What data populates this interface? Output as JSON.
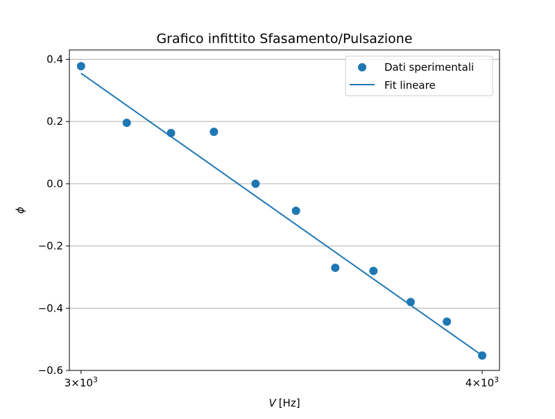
{
  "chart_data": {
    "type": "scatter",
    "title": "Grafico infittito Sfasamento/Pulsazione",
    "xlabel_var": "V",
    "xlabel_unit": "[Hz]",
    "ylabel": "ϕ",
    "x_scale": "log",
    "xlim": [
      2975,
      4050
    ],
    "ylim": [
      -0.6,
      0.43
    ],
    "yticks": [
      0.4,
      0.2,
      0.0,
      -0.2,
      -0.4,
      -0.6
    ],
    "ytick_labels": [
      "0.4",
      "0.2",
      "0.0",
      "−0.2",
      "−0.4",
      "−0.6"
    ],
    "xticks": [
      {
        "value": 3000,
        "mantissa": "3",
        "base": "10",
        "exp": "3"
      },
      {
        "value": 4000,
        "mantissa": "4",
        "base": "10",
        "exp": "3"
      }
    ],
    "grid": "y",
    "legend_position": "top-right",
    "series": [
      {
        "name": "Dati sperimentali",
        "kind": "scatter",
        "color": "#1f77b4",
        "x": [
          3000,
          3100,
          3200,
          3300,
          3400,
          3500,
          3600,
          3700,
          3800,
          3900,
          4000
        ],
        "y": [
          0.378,
          0.196,
          0.163,
          0.167,
          0.0,
          -0.087,
          -0.27,
          -0.28,
          -0.38,
          -0.443,
          -0.552
        ]
      },
      {
        "name": "Fit lineare",
        "kind": "line",
        "color": "#1f77b4",
        "x": [
          3000,
          4000
        ],
        "y": [
          0.355,
          -0.552
        ]
      }
    ]
  }
}
